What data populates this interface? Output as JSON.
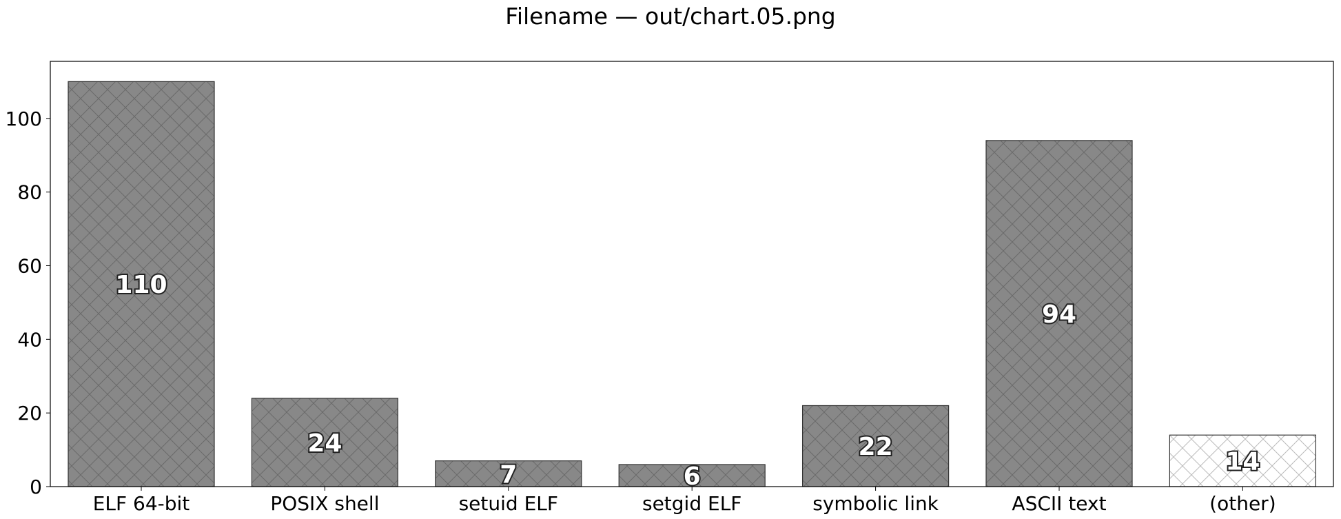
{
  "title": "Filename — out/chart.05.png",
  "chart_data": {
    "type": "bar",
    "title": "Filename — out/chart.05.png",
    "categories": [
      "ELF 64-bit",
      "POSIX shell",
      "setuid ELF",
      "setgid ELF",
      "symbolic link",
      "ASCII text",
      "(other)"
    ],
    "values": [
      110,
      24,
      7,
      6,
      22,
      94,
      14
    ],
    "data_labels": [
      "110",
      "24",
      "7",
      "6",
      "22",
      "94",
      "14"
    ],
    "ylim": [
      0,
      115.5
    ],
    "yticks": [
      0,
      20,
      40,
      60,
      80,
      100
    ],
    "xlabel": "",
    "ylabel": "",
    "grid": false,
    "legend": "none",
    "colors": {
      "bar_fill": "#888888",
      "bar_hatch": "#6a6a6a",
      "other_fill": "#ffffff",
      "other_hatch": "#bbbbbb",
      "edge": "#333333"
    },
    "hatch": "crosshatch"
  }
}
